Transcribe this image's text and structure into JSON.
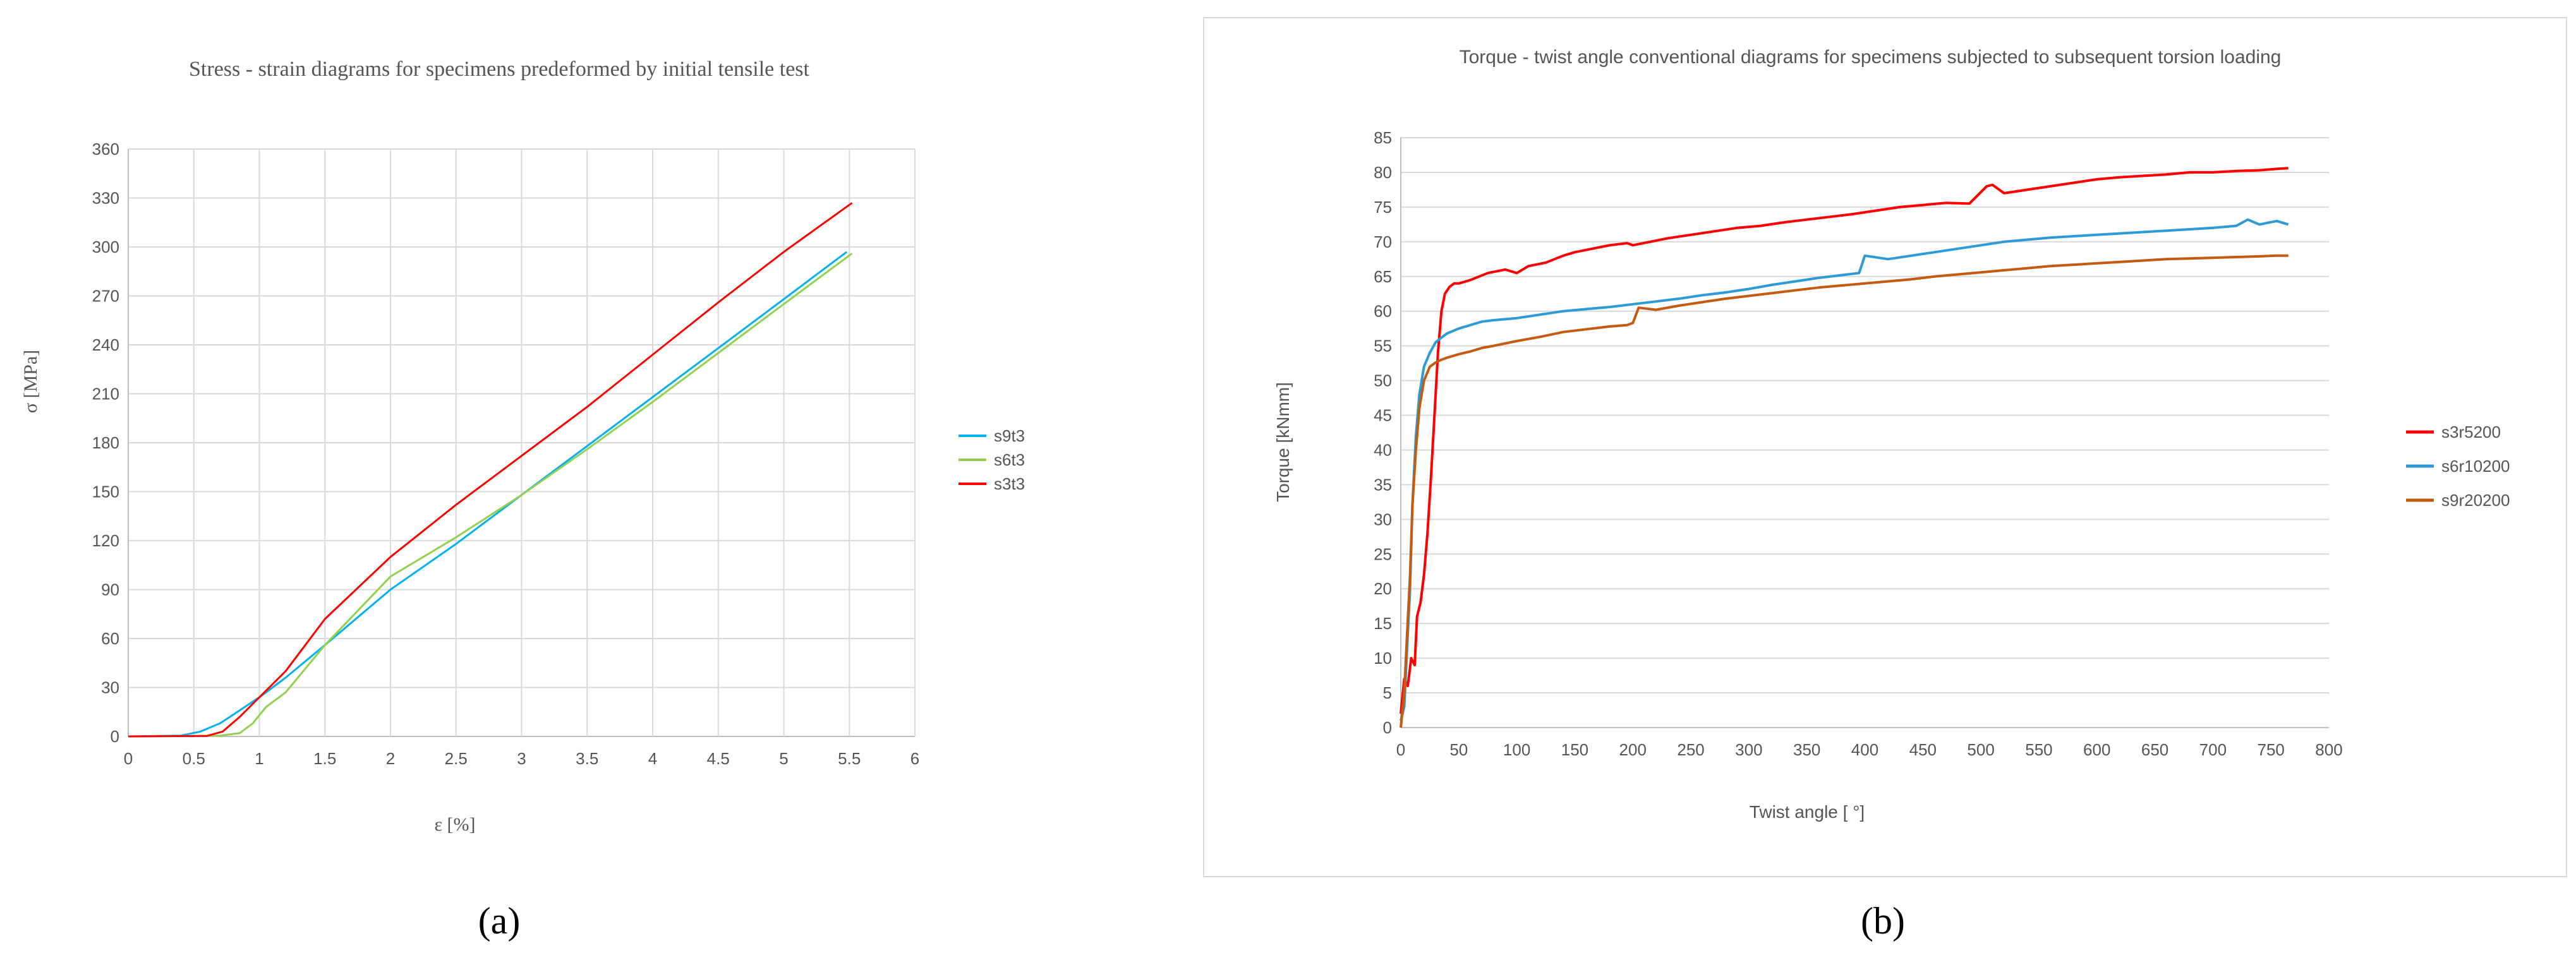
{
  "chart_data": [
    {
      "type": "line",
      "panel": "a",
      "title": "Stress - strain diagrams for specimens predeformed by initial tensile test",
      "xlabel": "ε [%]",
      "ylabel": "σ [MPa]",
      "xlim": [
        0,
        6
      ],
      "ylim": [
        0,
        360
      ],
      "xticks": [
        0,
        0.5,
        1,
        1.5,
        2,
        2.5,
        3,
        3.5,
        4,
        4.5,
        5,
        5.5,
        6
      ],
      "yticks": [
        0,
        30,
        60,
        90,
        120,
        150,
        180,
        210,
        240,
        270,
        300,
        330,
        360
      ],
      "grid": true,
      "legend_position": "right",
      "series": [
        {
          "name": "s9t3",
          "color": "#00b0f0",
          "x": [
            0,
            0.4,
            0.55,
            0.7,
            0.85,
            1.0,
            1.2,
            1.5,
            2.0,
            2.5,
            3.0,
            3.5,
            4.0,
            4.5,
            5.0,
            5.48
          ],
          "y": [
            0,
            0.5,
            3,
            8,
            16,
            24,
            36,
            56,
            90,
            118,
            148,
            178,
            208,
            238,
            268,
            297
          ]
        },
        {
          "name": "s6t3",
          "color": "#92d050",
          "x": [
            0,
            0.5,
            0.7,
            0.85,
            0.95,
            1.05,
            1.2,
            1.5,
            2.0,
            2.5,
            3.0,
            3.5,
            4.0,
            4.5,
            5.0,
            5.52
          ],
          "y": [
            0,
            0.3,
            0.5,
            2,
            8,
            18,
            27,
            56,
            98,
            122,
            148,
            176,
            205,
            235,
            265,
            296
          ]
        },
        {
          "name": "s3t3",
          "color": "#ff0000",
          "x": [
            0,
            0.6,
            0.72,
            0.85,
            1.0,
            1.2,
            1.5,
            2.0,
            2.5,
            3.0,
            3.5,
            4.0,
            4.5,
            5.0,
            5.52
          ],
          "y": [
            0,
            0.3,
            3,
            12,
            24,
            40,
            72,
            110,
            142,
            172,
            202,
            234,
            266,
            297,
            327
          ]
        }
      ]
    },
    {
      "type": "line",
      "panel": "b",
      "title": "Torque - twist angle conventional diagrams for specimens subjected to subsequent torsion loading",
      "xlabel": "Twist angle [ °]",
      "ylabel": "Torque [kNmm]",
      "xlim": [
        0,
        800
      ],
      "ylim": [
        0,
        85
      ],
      "xticks": [
        0,
        50,
        100,
        150,
        200,
        250,
        300,
        350,
        400,
        450,
        500,
        550,
        600,
        650,
        700,
        750,
        800
      ],
      "yticks": [
        0,
        5,
        10,
        15,
        20,
        25,
        30,
        35,
        40,
        45,
        50,
        55,
        60,
        65,
        70,
        75,
        80,
        85
      ],
      "grid": true,
      "legend_position": "right",
      "series": [
        {
          "name": "s3r5200",
          "color": "#ff0000",
          "x": [
            0,
            3,
            6,
            9,
            12,
            14,
            17,
            20,
            23,
            26,
            29,
            32,
            35,
            38,
            42,
            46,
            50,
            60,
            75,
            90,
            100,
            110,
            125,
            140,
            150,
            165,
            180,
            195,
            200,
            215,
            230,
            250,
            270,
            290,
            310,
            330,
            350,
            370,
            390,
            410,
            430,
            450,
            470,
            490,
            505,
            510,
            520,
            540,
            560,
            580,
            600,
            620,
            640,
            660,
            680,
            700,
            720,
            740,
            755,
            765
          ],
          "y": [
            2,
            7,
            6,
            10,
            9,
            16,
            18,
            22,
            28,
            36,
            45,
            54,
            60,
            62.5,
            63.5,
            64,
            64,
            64.5,
            65.5,
            66,
            65.5,
            66.5,
            67,
            68,
            68.5,
            69,
            69.5,
            69.8,
            69.5,
            70,
            70.5,
            71,
            71.5,
            72,
            72.3,
            72.8,
            73.2,
            73.6,
            74,
            74.5,
            75,
            75.3,
            75.6,
            75.5,
            78,
            78.2,
            77,
            77.5,
            78,
            78.5,
            79,
            79.3,
            79.5,
            79.7,
            80,
            80,
            80.2,
            80.3,
            80.5,
            80.6
          ]
        },
        {
          "name": "s6r10200",
          "color": "#2e9bd6",
          "x": [
            0,
            3,
            5,
            8,
            10,
            13,
            16,
            20,
            25,
            30,
            35,
            40,
            50,
            60,
            70,
            80,
            100,
            120,
            140,
            160,
            180,
            200,
            220,
            240,
            260,
            280,
            300,
            320,
            340,
            360,
            380,
            395,
            400,
            420,
            440,
            460,
            480,
            500,
            520,
            540,
            560,
            580,
            600,
            620,
            640,
            660,
            680,
            700,
            720,
            730,
            740,
            755,
            765
          ],
          "y": [
            1,
            3,
            10,
            20,
            32,
            42,
            48,
            52,
            54,
            55.5,
            56.2,
            56.8,
            57.5,
            58,
            58.5,
            58.7,
            59,
            59.5,
            60,
            60.3,
            60.6,
            61,
            61.4,
            61.8,
            62.3,
            62.7,
            63.2,
            63.8,
            64.3,
            64.8,
            65.2,
            65.5,
            68,
            67.5,
            68,
            68.5,
            69,
            69.5,
            70,
            70.3,
            70.6,
            70.8,
            71,
            71.2,
            71.4,
            71.6,
            71.8,
            72,
            72.3,
            73.2,
            72.5,
            73,
            72.5
          ]
        },
        {
          "name": "s9r20200",
          "color": "#c55a11",
          "x": [
            0,
            3,
            5,
            8,
            10,
            13,
            16,
            20,
            25,
            30,
            35,
            40,
            50,
            60,
            70,
            80,
            100,
            120,
            140,
            160,
            180,
            195,
            200,
            205,
            220,
            240,
            260,
            280,
            300,
            320,
            340,
            360,
            380,
            400,
            420,
            440,
            460,
            480,
            500,
            520,
            540,
            560,
            580,
            600,
            620,
            640,
            660,
            680,
            700,
            720,
            740,
            755,
            765
          ],
          "y": [
            0,
            5,
            12,
            22,
            32,
            40,
            46,
            50,
            52,
            52.6,
            53,
            53.3,
            53.8,
            54.2,
            54.7,
            55,
            55.7,
            56.3,
            57,
            57.4,
            57.8,
            58,
            58.3,
            60.5,
            60.2,
            60.8,
            61.3,
            61.8,
            62.2,
            62.6,
            63,
            63.4,
            63.7,
            64,
            64.3,
            64.6,
            65,
            65.3,
            65.6,
            65.9,
            66.2,
            66.5,
            66.7,
            66.9,
            67.1,
            67.3,
            67.5,
            67.6,
            67.7,
            67.8,
            67.9,
            68,
            68
          ]
        }
      ]
    }
  ],
  "panels": [
    "(a)",
    "(b)"
  ]
}
